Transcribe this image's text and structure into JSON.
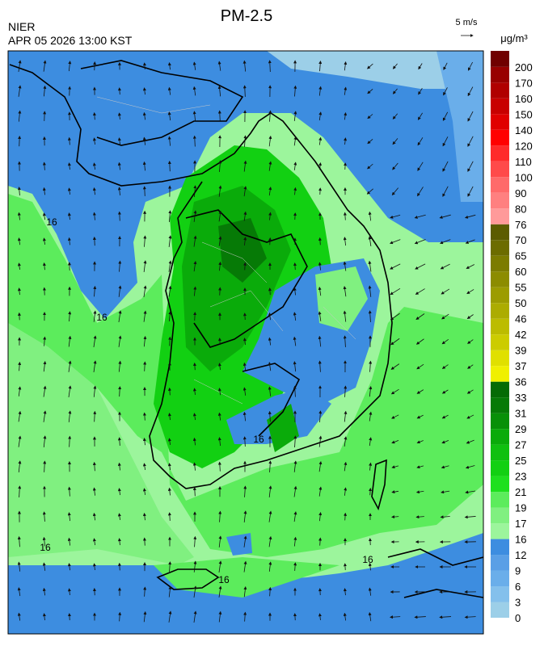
{
  "header": {
    "title": "PM-2.5",
    "agency": "NIER",
    "datetime": "APR 05 2026 13:00 KST",
    "wind_scale": "5 m/s",
    "unit": "μg/m³"
  },
  "colorbar": {
    "levels": [
      0,
      3,
      6,
      9,
      12,
      16,
      17,
      19,
      21,
      23,
      25,
      27,
      29,
      31,
      33,
      36,
      37,
      39,
      42,
      46,
      50,
      55,
      60,
      65,
      70,
      76,
      80,
      90,
      100,
      110,
      120,
      140,
      150,
      160,
      170,
      200
    ],
    "colors": [
      "#9ccfe8",
      "#84c0ec",
      "#6aaeea",
      "#5a9fe6",
      "#3d8de0",
      "#9cf59c",
      "#80f080",
      "#5cec5c",
      "#1ee01e",
      "#12d012",
      "#10c010",
      "#0aab0a",
      "#089008",
      "#067a06",
      "#056b05",
      "#f0f000",
      "#e0e000",
      "#cccc00",
      "#bcbc00",
      "#acac00",
      "#9c9c00",
      "#8c8c00",
      "#7c7c00",
      "#6c6c00",
      "#5c5c00",
      "#ff9a9a",
      "#ff8080",
      "#ff6a6a",
      "#ff4a4a",
      "#ff2a2a",
      "#ff0000",
      "#e00000",
      "#c80000",
      "#b00000",
      "#980000",
      "#700000"
    ]
  },
  "map": {
    "contour_labels": [
      "16",
      "16",
      "16",
      "16",
      "16",
      "16"
    ]
  }
}
